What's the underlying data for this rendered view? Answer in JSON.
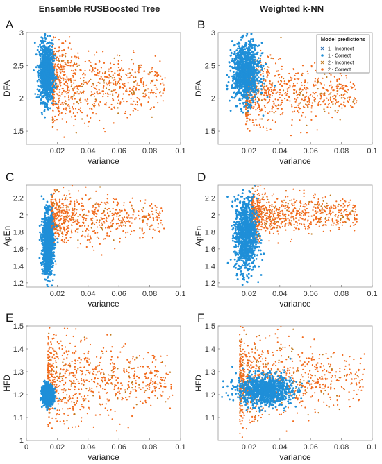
{
  "column_titles": [
    "Ensemble RUSBoosted Tree",
    "Weighted k-NN"
  ],
  "legend": {
    "title": "Model predictions",
    "entries": [
      {
        "label": "1 - Incorrect",
        "marker": "x",
        "color": "#2f6fb4"
      },
      {
        "label": "1 - Correct",
        "marker": "dot",
        "color": "#1f8fd8"
      },
      {
        "label": "2 - Incorrect",
        "marker": "x",
        "color": "#c07a1e"
      },
      {
        "label": "2 - Correct",
        "marker": "dot",
        "color": "#f26b1d"
      }
    ]
  },
  "chart_data": [
    {
      "panel": "A",
      "type": "scatter",
      "model": "Ensemble RUSBoosted Tree",
      "xlabel": "variance",
      "ylabel": "DFA",
      "xlim": [
        0,
        0.1
      ],
      "ylim": [
        1.3,
        3.0
      ],
      "xticks": [
        "0.02",
        "0.04",
        "0.06",
        "0.08",
        "0.1"
      ],
      "yticks": [
        "1.5",
        "2",
        "2.5",
        "3"
      ],
      "series": [
        {
          "name": "1 - Correct",
          "color": "#1f8fd8",
          "cluster": {
            "x_range": [
              0.008,
              0.018
            ],
            "y_range": [
              1.85,
              2.93
            ]
          }
        },
        {
          "name": "2 - Correct",
          "color": "#f26b1d",
          "cluster": {
            "x_range": [
              0.017,
              0.09
            ],
            "y_range": [
              1.5,
              2.9
            ]
          }
        }
      ]
    },
    {
      "panel": "B",
      "type": "scatter",
      "model": "Weighted k-NN",
      "xlabel": "variance",
      "ylabel": "DFA",
      "xlim": [
        0,
        0.1
      ],
      "ylim": [
        1.3,
        3.0
      ],
      "xticks": [
        "0.02",
        "0.04",
        "0.06",
        "0.08",
        "0.1"
      ],
      "yticks": [
        "1.5",
        "2",
        "2.5",
        "3"
      ],
      "legend_position": "top-right",
      "series": [
        {
          "name": "1 - Correct",
          "color": "#1f8fd8",
          "cluster": {
            "x_range": [
              0.008,
              0.028
            ],
            "y_range": [
              1.85,
              2.93
            ]
          }
        },
        {
          "name": "2 - Correct",
          "color": "#f26b1d",
          "cluster": {
            "x_range": [
              0.018,
              0.09
            ],
            "y_range": [
              1.5,
              2.7
            ]
          }
        }
      ]
    },
    {
      "panel": "C",
      "type": "scatter",
      "model": "Ensemble RUSBoosted Tree",
      "xlabel": "variance",
      "ylabel": "ApEn",
      "xlim": [
        0,
        0.1
      ],
      "ylim": [
        1.15,
        2.35
      ],
      "xticks": [
        "0.02",
        "0.04",
        "0.06",
        "0.08",
        "0.1"
      ],
      "yticks": [
        "1.2",
        "1.4",
        "1.6",
        "1.8",
        "2",
        "2.2"
      ],
      "series": [
        {
          "name": "1 - Correct",
          "color": "#1f8fd8",
          "cluster": {
            "x_range": [
              0.01,
              0.018
            ],
            "y_range": [
              1.22,
              2.1
            ]
          }
        },
        {
          "name": "2 - Correct",
          "color": "#f26b1d",
          "cluster": {
            "x_range": [
              0.016,
              0.09
            ],
            "y_range": [
              1.6,
              2.32
            ]
          }
        }
      ]
    },
    {
      "panel": "D",
      "type": "scatter",
      "model": "Weighted k-NN",
      "xlabel": "variance",
      "ylabel": "ApEn",
      "xlim": [
        0,
        0.1
      ],
      "ylim": [
        1.15,
        2.35
      ],
      "xticks": [
        "0.02",
        "0.04",
        "0.06",
        "0.08",
        "0.1"
      ],
      "yticks": [
        "1.2",
        "1.4",
        "1.6",
        "1.8",
        "2",
        "2.2"
      ],
      "series": [
        {
          "name": "1 - Correct",
          "color": "#1f8fd8",
          "cluster": {
            "x_range": [
              0.01,
              0.026
            ],
            "y_range": [
              1.22,
              2.3
            ]
          }
        },
        {
          "name": "2 - Correct",
          "color": "#f26b1d",
          "cluster": {
            "x_range": [
              0.022,
              0.09
            ],
            "y_range": [
              1.7,
              2.32
            ]
          }
        }
      ]
    },
    {
      "panel": "E",
      "type": "scatter",
      "model": "Ensemble RUSBoosted Tree",
      "xlabel": "variance",
      "ylabel": "HFD",
      "xlim": [
        0,
        0.1
      ],
      "ylim": [
        1.0,
        1.5
      ],
      "xticks": [
        "0",
        "0.02",
        "0.04",
        "0.06",
        "0.08",
        "0.1"
      ],
      "yticks": [
        "1",
        "1.1",
        "1.2",
        "1.3",
        "1.4",
        "1.5"
      ],
      "series": [
        {
          "name": "1 - Correct",
          "color": "#1f8fd8",
          "cluster": {
            "x_range": [
              0.01,
              0.018
            ],
            "y_range": [
              1.15,
              1.25
            ]
          }
        },
        {
          "name": "2 - Correct",
          "color": "#f26b1d",
          "cluster": {
            "x_range": [
              0.014,
              0.095
            ],
            "y_range": [
              1.05,
              1.48
            ]
          }
        }
      ]
    },
    {
      "panel": "F",
      "type": "scatter",
      "model": "Weighted k-NN",
      "xlabel": "variance",
      "ylabel": "HFD",
      "xlim": [
        0,
        0.1
      ],
      "ylim": [
        1.0,
        1.5
      ],
      "xticks": [
        "0.02",
        "0.04",
        "0.06",
        "0.08",
        "0.1"
      ],
      "yticks": [
        "1.1",
        "1.2",
        "1.3",
        "1.4",
        "1.5"
      ],
      "series": [
        {
          "name": "1 - Correct",
          "color": "#1f8fd8",
          "cluster": {
            "x_range": [
              0.01,
              0.05
            ],
            "y_range": [
              1.14,
              1.3
            ]
          }
        },
        {
          "name": "2 - Correct",
          "color": "#f26b1d",
          "cluster": {
            "x_range": [
              0.014,
              0.095
            ],
            "y_range": [
              1.05,
              1.48
            ]
          }
        }
      ]
    }
  ]
}
